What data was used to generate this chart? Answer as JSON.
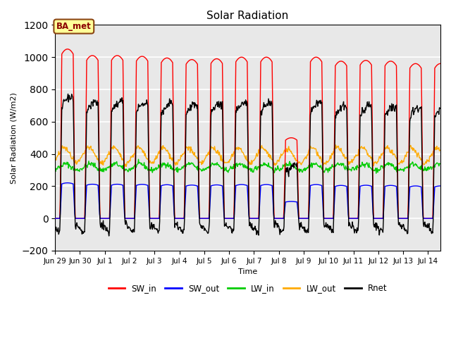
{
  "title": "Solar Radiation",
  "ylabel": "Solar Radiation (W/m2)",
  "xlabel": "Time",
  "ylim": [
    -200,
    1200
  ],
  "yticks": [
    -200,
    0,
    200,
    400,
    600,
    800,
    1000,
    1200
  ],
  "label_text": "BA_met",
  "series": {
    "SW_in": {
      "color": "#ff0000",
      "lw": 1.0
    },
    "SW_out": {
      "color": "#0000ff",
      "lw": 1.0
    },
    "LW_in": {
      "color": "#00cc00",
      "lw": 1.0
    },
    "LW_out": {
      "color": "#ffaa00",
      "lw": 1.0
    },
    "Rnet": {
      "color": "#000000",
      "lw": 1.0
    }
  },
  "xtick_labels": [
    "Jun 29",
    "Jun 30",
    "Jul 1",
    "Jul 2",
    "Jul 3",
    "Jul 4",
    "Jul 5",
    "Jul 6",
    "Jul 7",
    "Jul 8",
    "Jul 9",
    "Jul 10",
    "Jul 11",
    "Jul 12",
    "Jul 13",
    "Jul 14"
  ],
  "fig_bg": "#ffffff",
  "plot_bg": "#e8e8e8",
  "grid_color": "#ffffff",
  "annotation_box": {
    "facecolor": "#ffff99",
    "edgecolor": "#8b4513"
  }
}
